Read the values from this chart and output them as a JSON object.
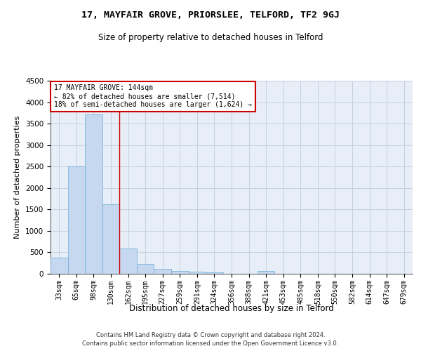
{
  "title": "17, MAYFAIR GROVE, PRIORSLEE, TELFORD, TF2 9GJ",
  "subtitle": "Size of property relative to detached houses in Telford",
  "xlabel": "Distribution of detached houses by size in Telford",
  "ylabel": "Number of detached properties",
  "categories": [
    "33sqm",
    "65sqm",
    "98sqm",
    "130sqm",
    "162sqm",
    "195sqm",
    "227sqm",
    "259sqm",
    "291sqm",
    "324sqm",
    "356sqm",
    "388sqm",
    "421sqm",
    "453sqm",
    "485sqm",
    "518sqm",
    "550sqm",
    "582sqm",
    "614sqm",
    "647sqm",
    "679sqm"
  ],
  "values": [
    370,
    2500,
    3720,
    1620,
    590,
    230,
    110,
    65,
    50,
    40,
    0,
    0,
    65,
    0,
    0,
    0,
    0,
    0,
    0,
    0,
    0
  ],
  "bar_color": "#c5d8f0",
  "bar_edge_color": "#6aaad4",
  "property_line_x": 3.5,
  "annotation_title": "17 MAYFAIR GROVE: 144sqm",
  "annotation_line1": "← 82% of detached houses are smaller (7,514)",
  "annotation_line2": "18% of semi-detached houses are larger (1,624) →",
  "ylim": [
    0,
    4500
  ],
  "yticks": [
    0,
    500,
    1000,
    1500,
    2000,
    2500,
    3000,
    3500,
    4000,
    4500
  ],
  "background_color": "#e8eef8",
  "grid_color": "#c8d0e0",
  "line_color": "#cc0000",
  "annotation_box_color": "#ffffff",
  "annotation_box_edge": "#cc0000",
  "footer_line1": "Contains HM Land Registry data © Crown copyright and database right 2024.",
  "footer_line2": "Contains public sector information licensed under the Open Government Licence v3.0."
}
